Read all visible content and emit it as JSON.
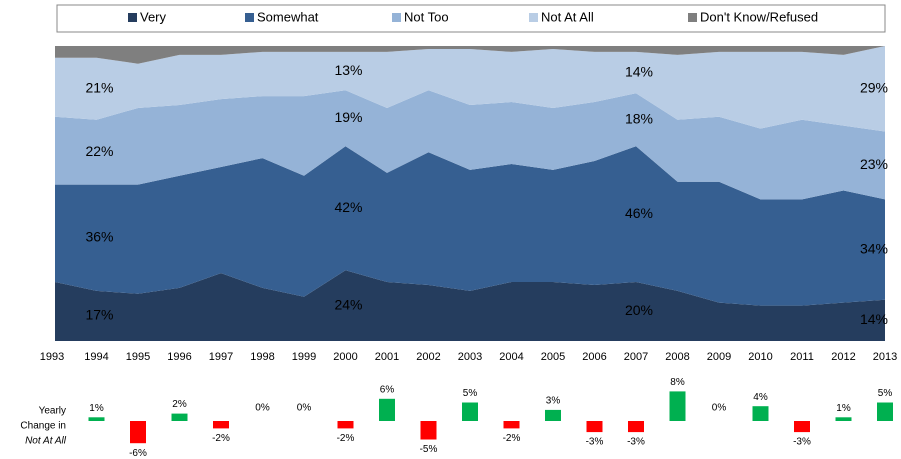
{
  "chart_data": [
    {
      "type": "area",
      "categories": [
        "1993",
        "1994",
        "1995",
        "1996",
        "1997",
        "1998",
        "1999",
        "2000",
        "2001",
        "2002",
        "2003",
        "2004",
        "2005",
        "2006",
        "2007",
        "2008",
        "2009",
        "2010",
        "2011",
        "2012",
        "2013"
      ],
      "legend": "top",
      "series": [
        {
          "name": "Very",
          "color": "#253d5e",
          "values": [
            20,
            17,
            16,
            18,
            23,
            18,
            15,
            24,
            20,
            19,
            17,
            20,
            20,
            19,
            20,
            17,
            13,
            12,
            12,
            13,
            14
          ],
          "value_labels": [
            null,
            "17%",
            null,
            null,
            null,
            null,
            null,
            "24%",
            null,
            null,
            null,
            null,
            null,
            null,
            "20%",
            null,
            null,
            null,
            null,
            null,
            "14%"
          ]
        },
        {
          "name": "Somewhat",
          "color": "#365f91",
          "values": [
            33,
            36,
            37,
            38,
            36,
            44,
            41,
            42,
            37,
            45,
            41,
            40,
            38,
            42,
            46,
            37,
            41,
            36,
            36,
            38,
            34
          ],
          "value_labels": [
            null,
            "36%",
            null,
            null,
            null,
            null,
            null,
            "42%",
            null,
            null,
            null,
            null,
            null,
            null,
            "46%",
            null,
            null,
            null,
            null,
            null,
            "34%"
          ]
        },
        {
          "name": "Not Too",
          "color": "#95b3d7",
          "values": [
            23,
            22,
            26,
            24,
            23,
            21,
            27,
            19,
            22,
            21,
            22,
            21,
            21,
            20,
            18,
            21,
            22,
            24,
            27,
            22,
            23
          ],
          "value_labels": [
            null,
            "22%",
            null,
            null,
            null,
            null,
            null,
            "19%",
            null,
            null,
            null,
            null,
            null,
            null,
            "18%",
            null,
            null,
            null,
            null,
            null,
            "23%"
          ]
        },
        {
          "name": "Not At All",
          "color": "#b9cde5",
          "values": [
            20,
            21,
            15,
            17,
            15,
            15,
            15,
            13,
            19,
            14,
            19,
            17,
            20,
            17,
            14,
            22,
            22,
            26,
            23,
            24,
            29
          ],
          "value_labels": [
            null,
            "21%",
            null,
            null,
            null,
            null,
            null,
            "13%",
            null,
            null,
            null,
            null,
            null,
            null,
            "14%",
            null,
            null,
            null,
            null,
            null,
            "29%"
          ]
        },
        {
          "name": "Don't Know/Refused",
          "color": "#7f7f7f",
          "values": [
            4,
            4,
            6,
            3,
            3,
            2,
            2,
            2,
            2,
            1,
            1,
            2,
            1,
            2,
            2,
            3,
            2,
            2,
            2,
            3,
            0
          ]
        }
      ]
    },
    {
      "type": "bar",
      "ylabel": [
        "Yearly",
        "Change in",
        "Not At All"
      ],
      "positive_color": "#00b050",
      "negative_color": "#ff0000",
      "values": [
        1,
        -6,
        2,
        -2,
        0,
        0,
        -2,
        6,
        -5,
        5,
        -2,
        3,
        -3,
        -3,
        8,
        0,
        4,
        -3,
        1,
        5
      ],
      "value_labels": [
        "1%",
        "-6%",
        "2%",
        "-2%",
        "0%",
        "0%",
        "-2%",
        "6%",
        "-5%",
        "5%",
        "-2%",
        "3%",
        "-3%",
        "-3%",
        "8%",
        "0%",
        "4%",
        "-3%",
        "1%",
        "5%"
      ]
    }
  ]
}
